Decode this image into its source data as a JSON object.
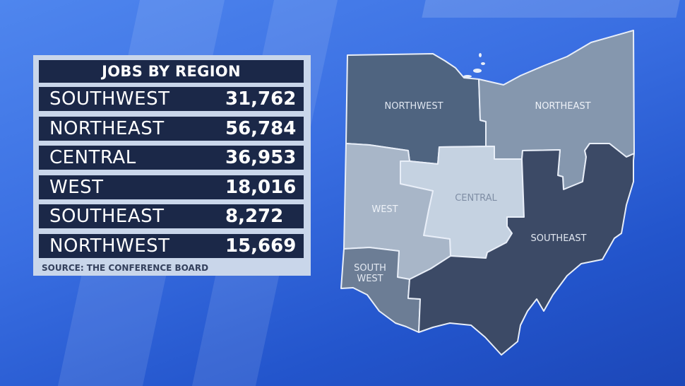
{
  "table": {
    "title": "JOBS BY REGION",
    "rows": [
      {
        "region": "SOUTHWEST",
        "jobs": "31,762"
      },
      {
        "region": "NORTHEAST",
        "jobs": "56,784"
      },
      {
        "region": "CENTRAL",
        "jobs": "36,953"
      },
      {
        "region": "WEST",
        "jobs": "18,016"
      },
      {
        "region": "SOUTHEAST",
        "jobs": "8,272"
      },
      {
        "region": "NORTHWEST",
        "jobs": "15,669"
      }
    ],
    "source": "SOURCE: THE CONFERENCE BOARD"
  },
  "map": {
    "regions": {
      "northwest": {
        "label": "NORTHWEST",
        "color": "#4f6480"
      },
      "northeast": {
        "label": "NORTHEAST",
        "color": "#8597ae"
      },
      "central": {
        "label": "CENTRAL",
        "color": "#c5d2e1"
      },
      "west": {
        "label": "WEST",
        "color": "#a8b6c8"
      },
      "southwest": {
        "label_line1": "SOUTH",
        "label_line2": "WEST",
        "color": "#6c7d95"
      },
      "southeast": {
        "label": "SOUTHEAST",
        "color": "#3c4a66"
      }
    }
  },
  "colors": {
    "background": "#2f63d8",
    "panel": "#c9d6ea",
    "row": "#1b2848"
  }
}
